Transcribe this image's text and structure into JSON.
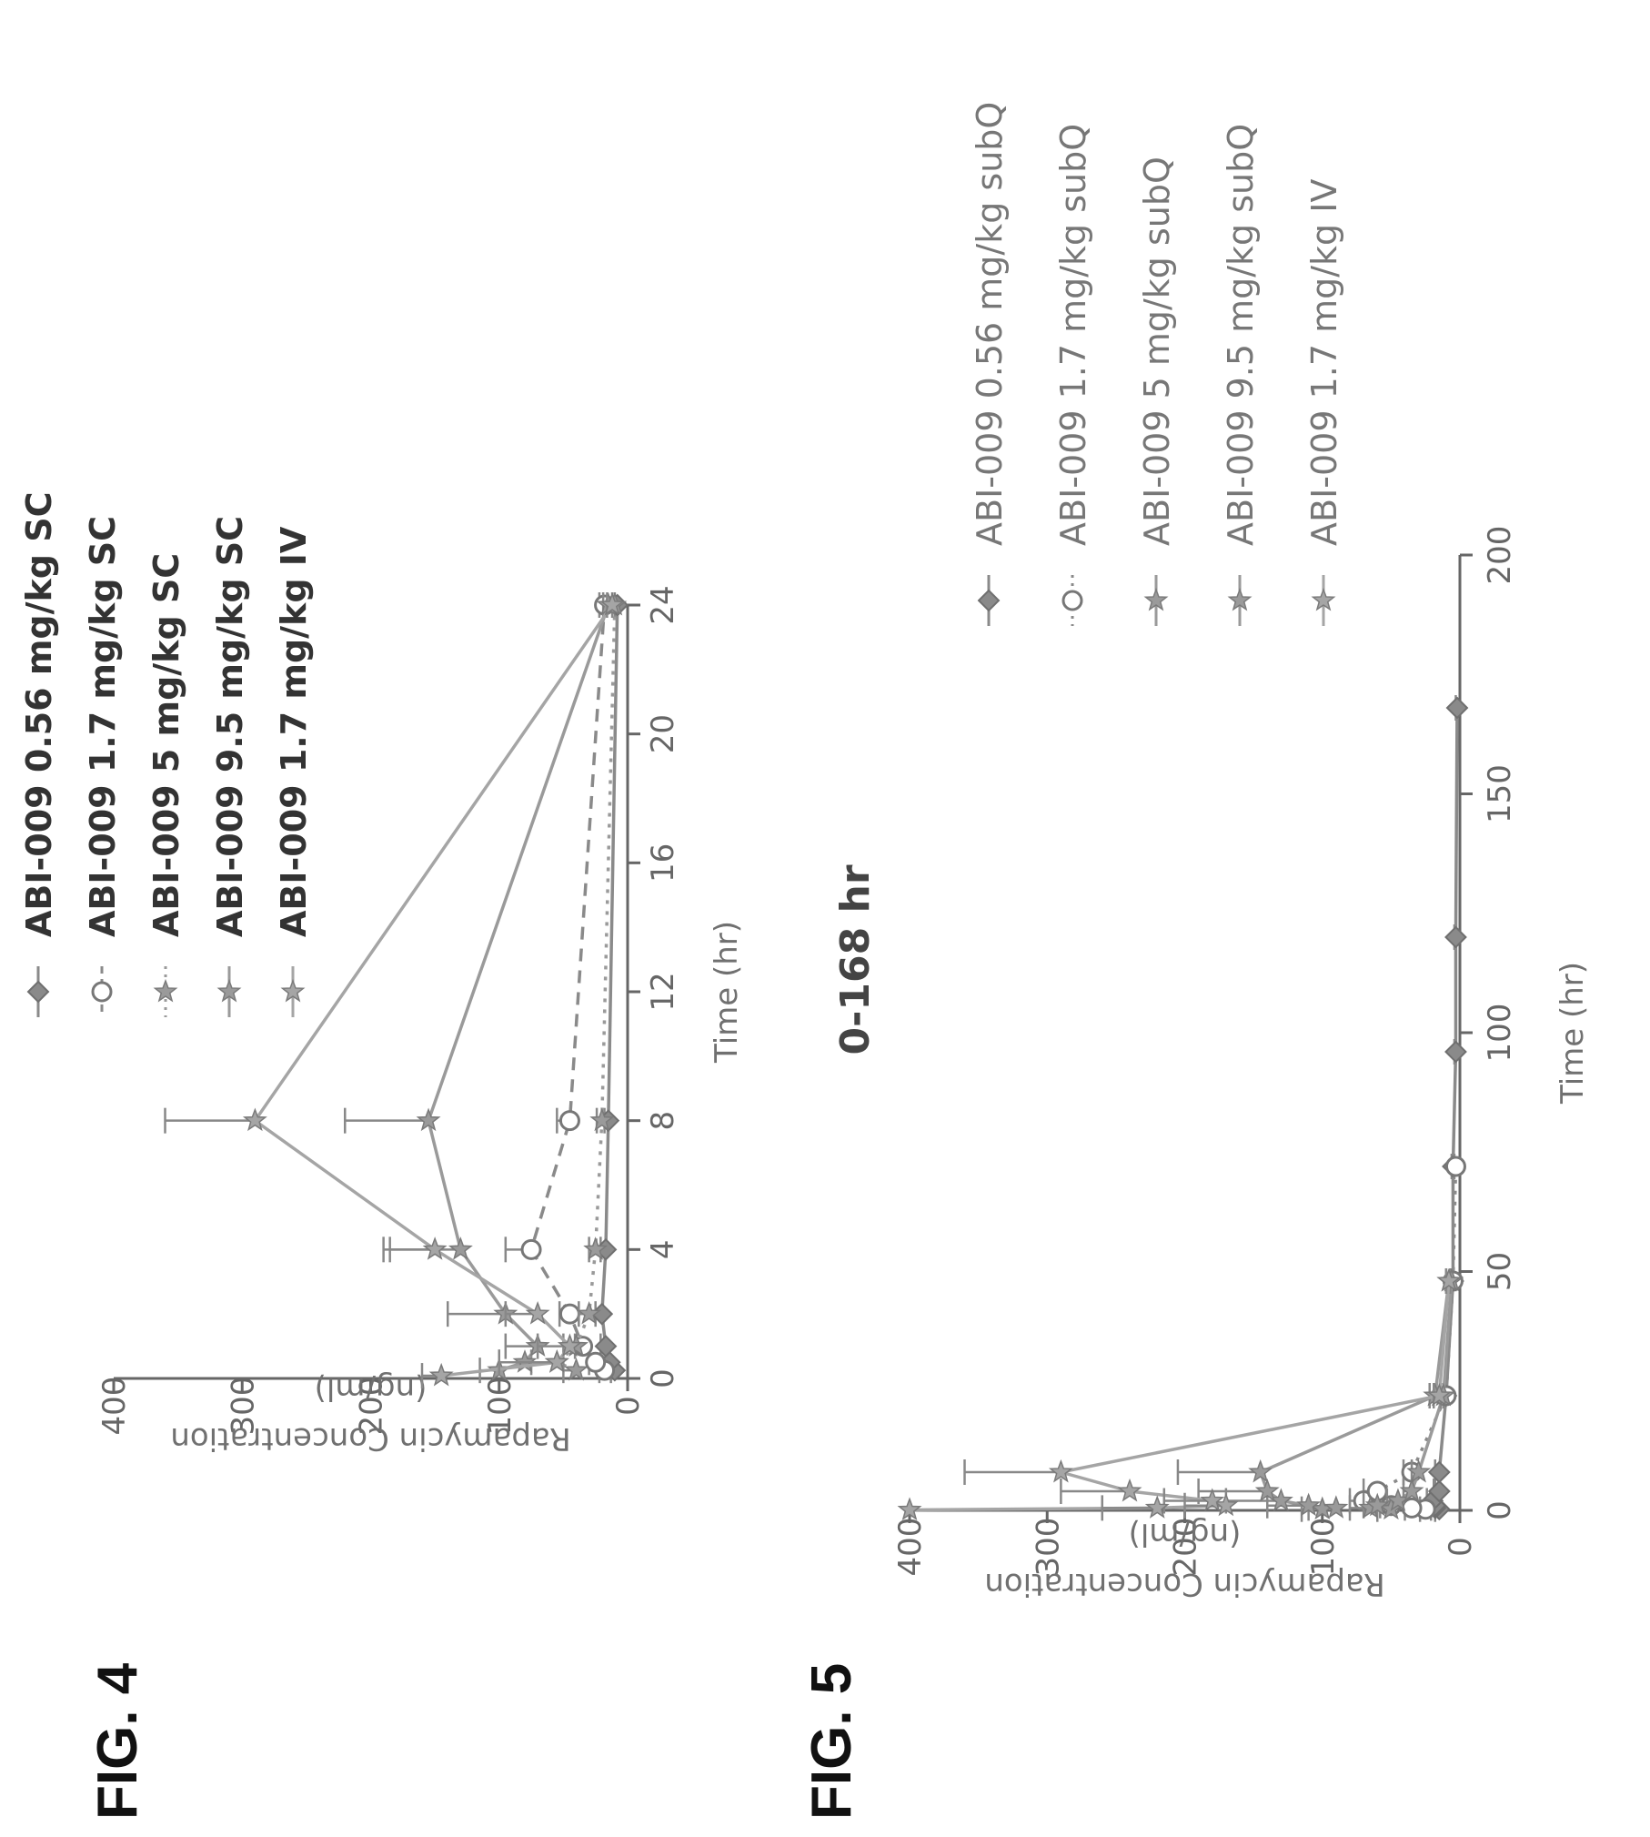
{
  "figures": [
    {
      "label": "FIG. 4"
    },
    {
      "label": "FIG. 5",
      "subtitle": "0-168 hr"
    }
  ],
  "chart_data": [
    {
      "type": "line",
      "figure": "FIG. 4",
      "title": "",
      "xlabel": "Time (hr)",
      "ylabel": "Rapamycin Concentration (ng/ml)",
      "xlim": [
        0,
        24
      ],
      "ylim": [
        0,
        400
      ],
      "xticks": [
        "0",
        "4",
        "8",
        "12",
        "16",
        "20",
        "24"
      ],
      "yticks": [
        "0",
        "100",
        "200",
        "300",
        "400"
      ],
      "grid": false,
      "legend_placement": "top-right",
      "series": [
        {
          "name": "ABI-009 0.56 mg/kg SC",
          "marker": "diamond",
          "style": "solid",
          "color": "#8a8a8a",
          "x": [
            0.25,
            0.5,
            1,
            2,
            4,
            8,
            24
          ],
          "y": [
            10,
            14,
            17,
            20,
            17,
            15,
            8
          ],
          "err": [
            3,
            3,
            4,
            5,
            4,
            3,
            2
          ]
        },
        {
          "name": "ABI-009 1.7 mg/kg SC",
          "marker": "circle-open",
          "style": "dashed",
          "color": "#8a8a8a",
          "x": [
            0.25,
            0.5,
            1,
            2,
            4,
            8,
            24
          ],
          "y": [
            18,
            25,
            35,
            45,
            75,
            45,
            18
          ],
          "err": [
            4,
            5,
            6,
            8,
            20,
            10,
            4
          ]
        },
        {
          "name": "ABI-009 5 mg/kg SC",
          "marker": "star",
          "style": "dotted",
          "color": "#9a9a9a",
          "x": [
            0.25,
            0.5,
            1,
            2,
            4,
            8,
            24
          ],
          "y": [
            40,
            55,
            40,
            30,
            25,
            20,
            10
          ],
          "err": [
            10,
            20,
            10,
            8,
            5,
            4,
            2
          ]
        },
        {
          "name": "ABI-009 9.5 mg/kg SC",
          "marker": "star",
          "style": "solid",
          "color": "#9a9a9a",
          "x": [
            0.25,
            0.5,
            1,
            2,
            4,
            8,
            24
          ],
          "y": [
            100,
            80,
            70,
            95,
            130,
            155,
            15
          ],
          "err": [
            15,
            20,
            25,
            45,
            55,
            65,
            4
          ]
        },
        {
          "name": "ABI-009 1.7 mg/kg IV",
          "marker": "star",
          "style": "solid",
          "color": "#a5a5a5",
          "x": [
            0.083,
            0.5,
            1,
            2,
            4,
            8,
            24
          ],
          "y": [
            145,
            55,
            45,
            70,
            150,
            290,
            12
          ],
          "err": [
            15,
            45,
            25,
            25,
            40,
            70,
            4
          ]
        }
      ]
    },
    {
      "type": "line",
      "figure": "FIG. 5",
      "title": "0-168 hr",
      "xlabel": "Time (hr)",
      "ylabel": "Rapamycin Concentration (ng/ml)",
      "xlim": [
        0,
        200
      ],
      "ylim": [
        0,
        400
      ],
      "xticks": [
        "0",
        "50",
        "100",
        "150",
        "200"
      ],
      "yticks": [
        "0",
        "100",
        "200",
        "300",
        "400"
      ],
      "grid": false,
      "legend_placement": "top-right",
      "series": [
        {
          "name": "ABI-009 0.56 mg/kg subQ",
          "marker": "diamond",
          "style": "solid",
          "color": "#8a8a8a",
          "x": [
            0.25,
            0.5,
            1,
            2,
            4,
            8,
            24,
            48,
            72,
            96,
            120,
            168
          ],
          "y": [
            15,
            18,
            18,
            20,
            15,
            15,
            10,
            5,
            5,
            3,
            3,
            2
          ],
          "err": [
            3,
            3,
            4,
            4,
            4,
            3,
            2,
            1,
            1,
            1,
            1,
            1
          ]
        },
        {
          "name": "ABI-009 1.7 mg/kg subQ",
          "marker": "circle-open",
          "style": "dotted",
          "color": "#8a8a8a",
          "x": [
            0.25,
            0.5,
            1,
            2,
            4,
            8,
            24,
            48,
            72
          ],
          "y": [
            25,
            35,
            50,
            70,
            60,
            35,
            10,
            5,
            3
          ],
          "err": [
            4,
            5,
            8,
            10,
            10,
            6,
            2,
            1,
            1
          ]
        },
        {
          "name": "ABI-009 5 mg/kg subQ",
          "marker": "star",
          "style": "solid",
          "color": "#9a9a9a",
          "x": [
            0.25,
            0.5,
            1,
            2,
            4,
            8,
            24,
            48
          ],
          "y": [
            50,
            65,
            60,
            45,
            35,
            30,
            12,
            6
          ],
          "err": [
            10,
            15,
            10,
            8,
            6,
            5,
            2,
            1
          ]
        },
        {
          "name": "ABI-009 9.5 mg/kg subQ",
          "marker": "star",
          "style": "solid",
          "color": "#9a9a9a",
          "x": [
            0.25,
            0.5,
            1,
            2,
            4,
            8,
            24,
            48
          ],
          "y": [
            100,
            90,
            110,
            130,
            140,
            145,
            18,
            8
          ],
          "err": [
            15,
            20,
            30,
            40,
            50,
            60,
            4,
            2
          ]
        },
        {
          "name": "ABI-009 1.7 mg/kg IV",
          "marker": "star",
          "style": "solid",
          "color": "#a5a5a5",
          "x": [
            0.083,
            0.5,
            1,
            2,
            4,
            8,
            24,
            48
          ],
          "y": [
            400,
            220,
            170,
            180,
            240,
            290,
            15,
            8
          ],
          "err": [
            0,
            40,
            30,
            35,
            50,
            70,
            4,
            2
          ]
        }
      ]
    }
  ]
}
